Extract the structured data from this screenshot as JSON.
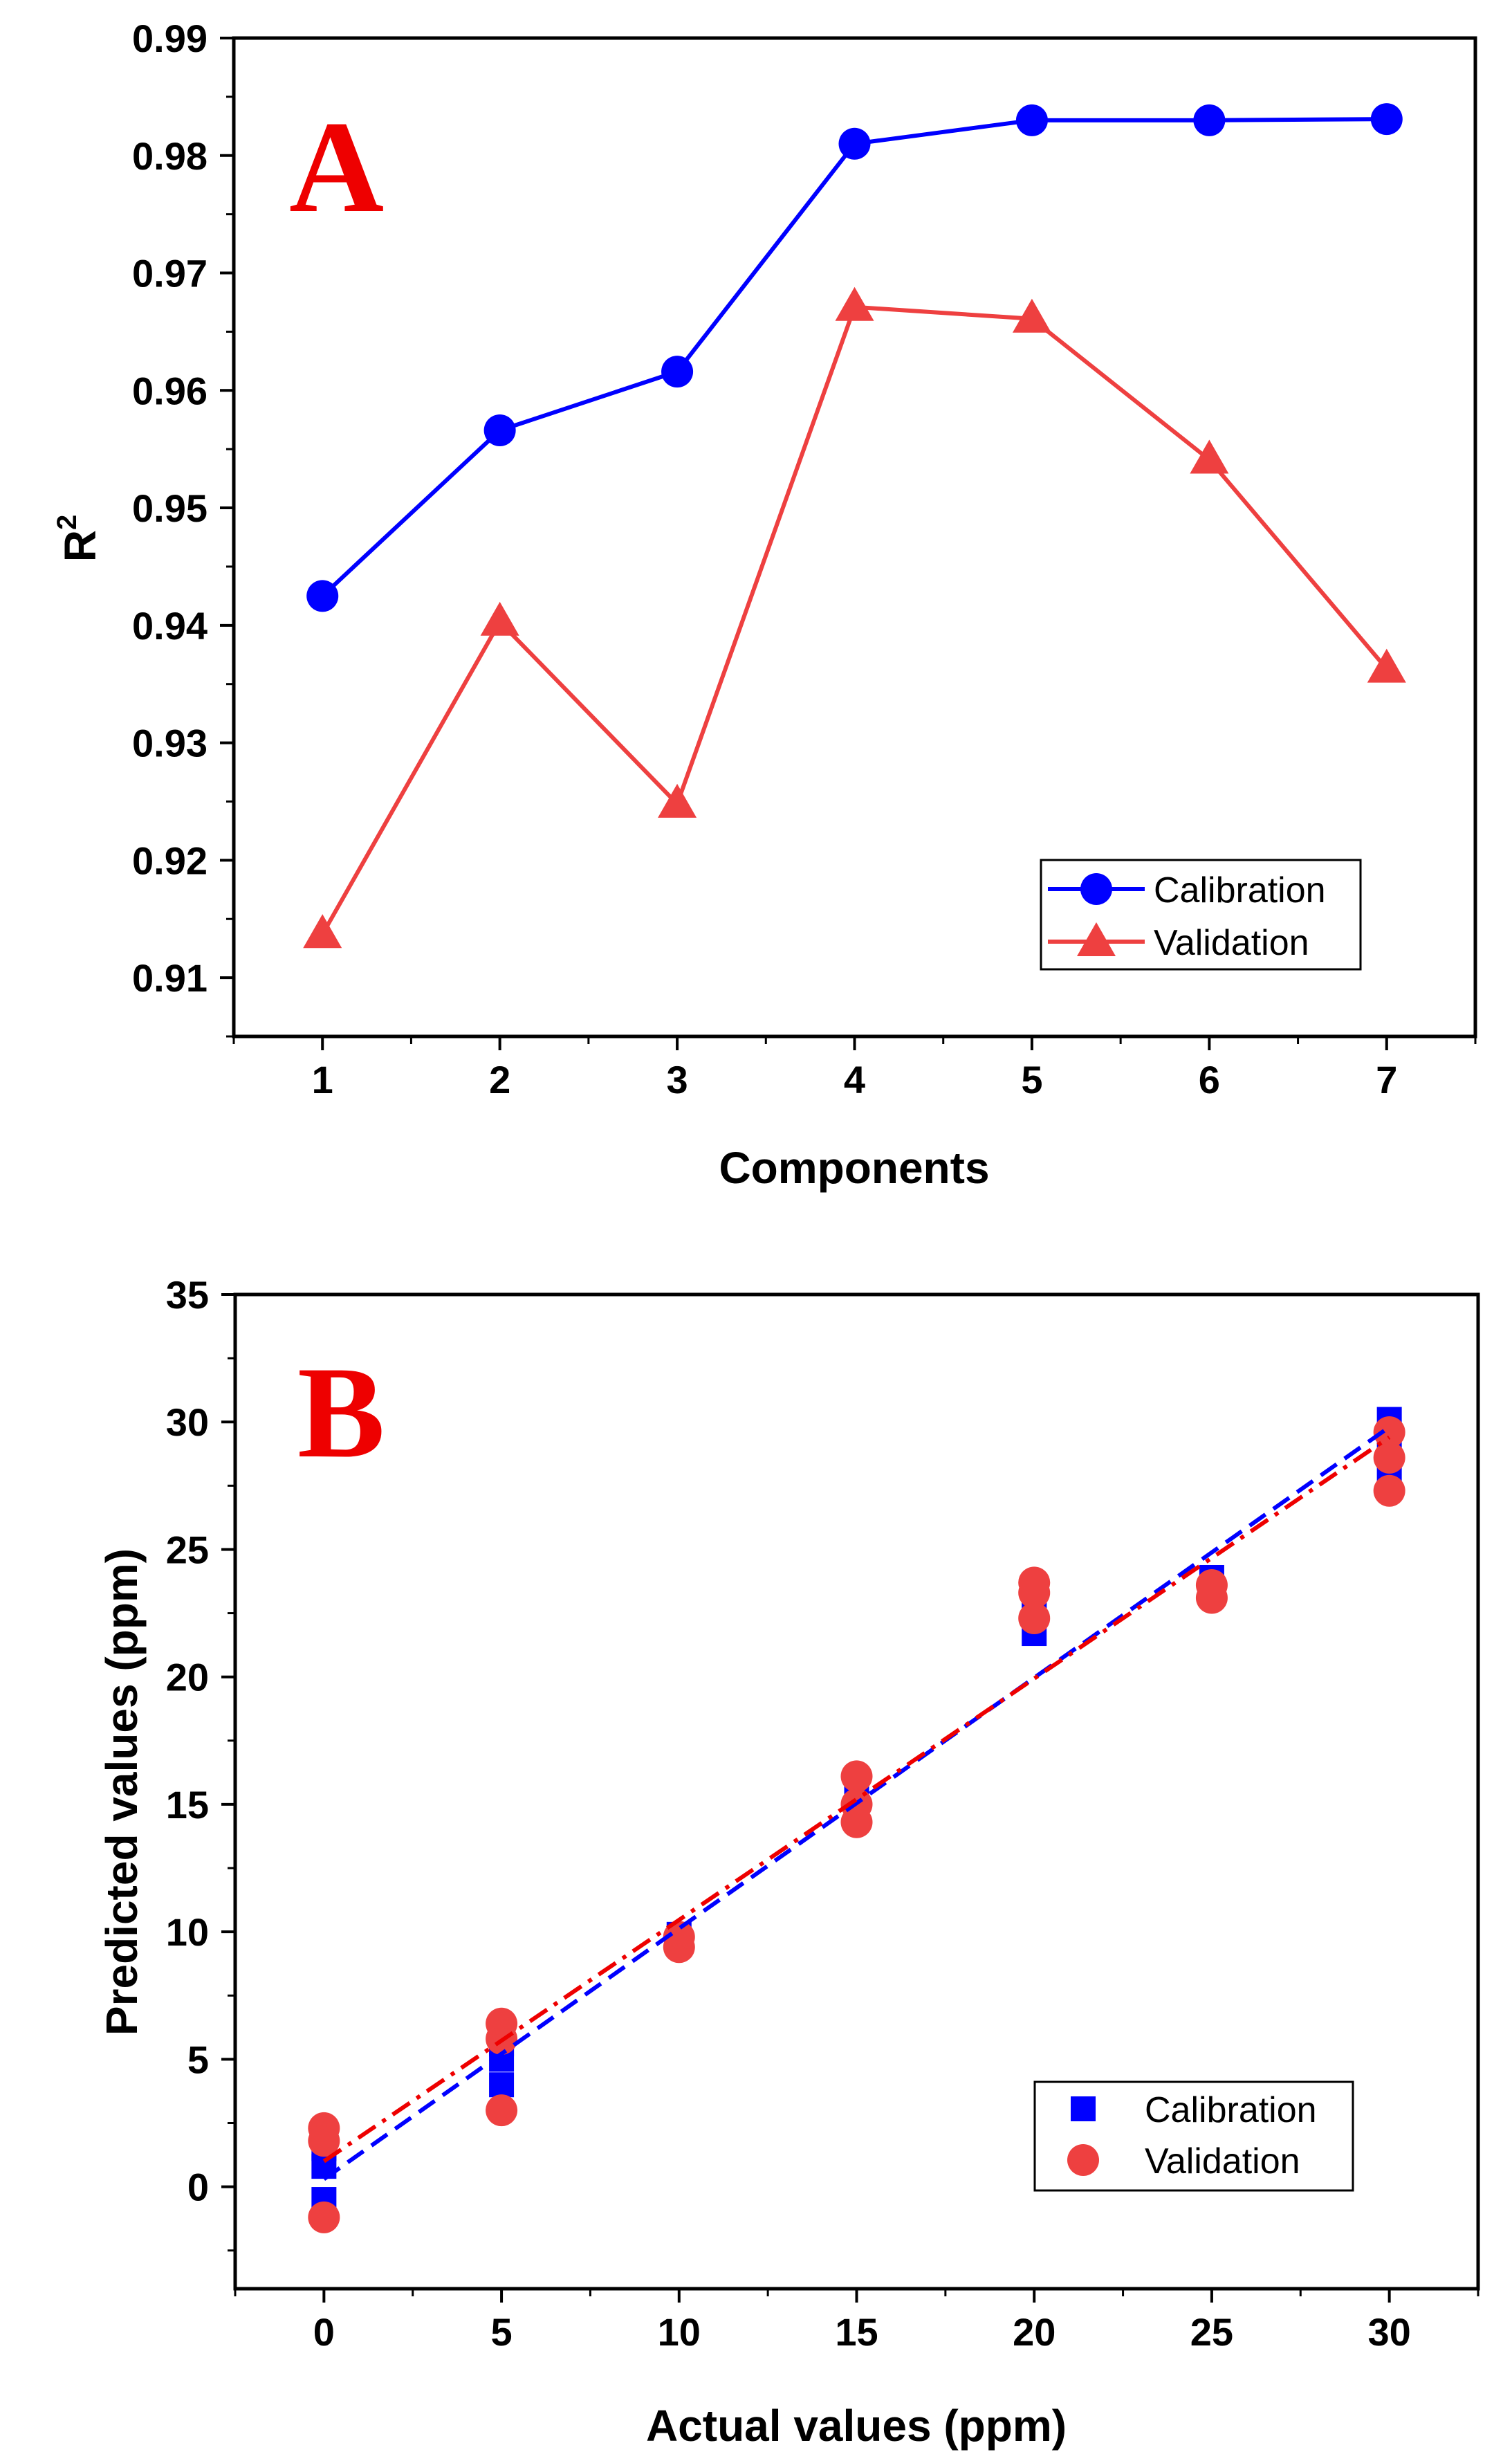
{
  "chart_data": [
    {
      "type": "line",
      "panel_label": "A",
      "xlabel": "Components",
      "ylabel": "R",
      "ylabel_superscript": "2",
      "xlim": [
        0.5,
        7.5
      ],
      "ylim": [
        0.905,
        0.99
      ],
      "xticks": [
        1,
        2,
        3,
        4,
        5,
        6,
        7
      ],
      "yticks": [
        0.91,
        0.92,
        0.93,
        0.94,
        0.95,
        0.96,
        0.97,
        0.98,
        0.99
      ],
      "ytick_labels": [
        "0.91",
        "0.92",
        "0.93",
        "0.94",
        "0.95",
        "0.96",
        "0.97",
        "0.98",
        "0.99"
      ],
      "grid": false,
      "legend_position": "bottom-right",
      "series": [
        {
          "name": "Calibration",
          "marker": "circle",
          "color": "#0000ff",
          "x": [
            1,
            2,
            3,
            4,
            5,
            6,
            7
          ],
          "y": [
            0.9425,
            0.9566,
            0.9616,
            0.981,
            0.983,
            0.983,
            0.9831
          ]
        },
        {
          "name": "Validation",
          "marker": "triangle",
          "color": "#ee4040",
          "x": [
            1,
            2,
            3,
            4,
            5,
            6,
            7
          ],
          "y": [
            0.9137,
            0.9403,
            0.9248,
            0.9671,
            0.9661,
            0.9541,
            0.9363
          ]
        }
      ]
    },
    {
      "type": "scatter",
      "panel_label": "B",
      "xlabel": "Actual values (ppm)",
      "ylabel": "Predicted values (ppm)",
      "xlim": [
        -2.5,
        32.5
      ],
      "ylim": [
        -4,
        35
      ],
      "xticks": [
        0,
        5,
        10,
        15,
        20,
        25,
        30
      ],
      "yticks": [
        0,
        5,
        10,
        15,
        20,
        25,
        30,
        35
      ],
      "grid": false,
      "legend_position": "bottom-right",
      "series": [
        {
          "name": "Calibration",
          "marker": "square",
          "color": "#0000ff",
          "x": [
            0,
            0,
            0,
            5,
            5,
            5,
            10,
            10,
            15,
            15,
            15,
            20,
            20,
            20,
            25,
            25,
            30,
            30,
            30
          ],
          "y": [
            -0.5,
            0.8,
            1.5,
            4.0,
            5.0,
            5.6,
            9.5,
            9.9,
            14.5,
            15.3,
            16.0,
            21.7,
            22.5,
            23.2,
            23.3,
            23.9,
            28.0,
            29.2,
            30.1
          ]
        },
        {
          "name": "Validation",
          "marker": "circle",
          "color": "#ee4040",
          "x": [
            0,
            0,
            0,
            5,
            5,
            5,
            10,
            10,
            15,
            15,
            15,
            20,
            20,
            20,
            25,
            25,
            30,
            30,
            30
          ],
          "y": [
            -1.2,
            1.8,
            2.3,
            3.0,
            5.8,
            6.4,
            9.4,
            9.8,
            14.3,
            15.0,
            16.1,
            22.3,
            23.3,
            23.7,
            23.1,
            23.6,
            27.3,
            28.6,
            29.6
          ]
        }
      ],
      "fit_lines": [
        {
          "series": "Calibration",
          "style": "dashed",
          "color": "#0000ff",
          "x": [
            0,
            30
          ],
          "y": [
            0.3,
            29.8
          ]
        },
        {
          "series": "Validation",
          "style": "dash-dot",
          "color": "#ee0000",
          "x": [
            0,
            30
          ],
          "y": [
            1.0,
            29.4
          ]
        }
      ]
    }
  ]
}
